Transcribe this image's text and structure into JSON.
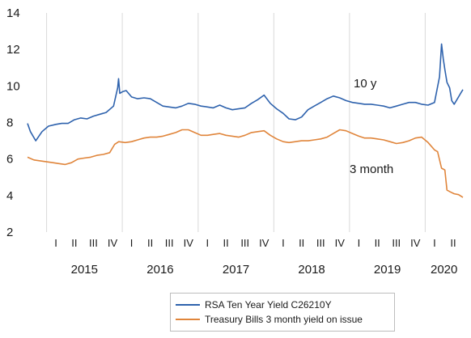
{
  "chart_data": {
    "type": "line",
    "title": "",
    "xlabel": "",
    "ylabel": "",
    "ylim": [
      2,
      14
    ],
    "yticks": [
      "2",
      "4",
      "6",
      "8",
      "10",
      "12",
      "14"
    ],
    "x_range": [
      "2014-10-01",
      "2020-07-01"
    ],
    "grid": "vertical gridlines at year boundaries",
    "quarter_labels": [
      "I",
      "II",
      "III",
      "IV"
    ],
    "year_labels": [
      "2015",
      "2016",
      "2017",
      "2018",
      "2019",
      "2020"
    ],
    "legend": "bottom-center",
    "annotations": [
      "10 y",
      "3 month"
    ],
    "series": [
      {
        "name": "RSA Ten Year Yield C26210Y",
        "color": "#2e62ad",
        "points": [
          [
            "2014-10-01",
            7.95
          ],
          [
            "2014-10-15",
            7.5
          ],
          [
            "2014-11-10",
            7.0
          ],
          [
            "2014-12-10",
            7.5
          ],
          [
            "2015-01-10",
            7.8
          ],
          [
            "2015-02-15",
            7.9
          ],
          [
            "2015-03-15",
            7.95
          ],
          [
            "2015-04-15",
            7.95
          ],
          [
            "2015-05-15",
            8.15
          ],
          [
            "2015-06-15",
            8.25
          ],
          [
            "2015-07-15",
            8.2
          ],
          [
            "2015-08-15",
            8.35
          ],
          [
            "2015-09-15",
            8.45
          ],
          [
            "2015-10-15",
            8.55
          ],
          [
            "2015-11-20",
            8.9
          ],
          [
            "2015-12-10",
            9.9
          ],
          [
            "2015-12-14",
            10.4
          ],
          [
            "2015-12-20",
            9.6
          ],
          [
            "2016-01-05",
            9.7
          ],
          [
            "2016-01-20",
            9.75
          ],
          [
            "2016-02-15",
            9.4
          ],
          [
            "2016-03-15",
            9.3
          ],
          [
            "2016-04-15",
            9.35
          ],
          [
            "2016-05-15",
            9.3
          ],
          [
            "2016-06-15",
            9.1
          ],
          [
            "2016-07-15",
            8.9
          ],
          [
            "2016-08-15",
            8.85
          ],
          [
            "2016-09-15",
            8.8
          ],
          [
            "2016-10-15",
            8.9
          ],
          [
            "2016-11-15",
            9.05
          ],
          [
            "2016-12-15",
            9.0
          ],
          [
            "2017-01-15",
            8.9
          ],
          [
            "2017-02-15",
            8.85
          ],
          [
            "2017-03-15",
            8.8
          ],
          [
            "2017-04-15",
            8.95
          ],
          [
            "2017-05-15",
            8.8
          ],
          [
            "2017-06-15",
            8.7
          ],
          [
            "2017-07-15",
            8.75
          ],
          [
            "2017-08-15",
            8.8
          ],
          [
            "2017-09-15",
            9.05
          ],
          [
            "2017-10-15",
            9.25
          ],
          [
            "2017-11-15",
            9.5
          ],
          [
            "2017-12-15",
            9.05
          ],
          [
            "2018-01-15",
            8.75
          ],
          [
            "2018-02-15",
            8.5
          ],
          [
            "2018-03-15",
            8.2
          ],
          [
            "2018-04-15",
            8.15
          ],
          [
            "2018-05-15",
            8.3
          ],
          [
            "2018-06-15",
            8.7
          ],
          [
            "2018-07-15",
            8.9
          ],
          [
            "2018-08-15",
            9.1
          ],
          [
            "2018-09-15",
            9.3
          ],
          [
            "2018-10-15",
            9.45
          ],
          [
            "2018-11-15",
            9.35
          ],
          [
            "2018-12-15",
            9.2
          ],
          [
            "2019-01-15",
            9.1
          ],
          [
            "2019-02-15",
            9.05
          ],
          [
            "2019-03-15",
            9.0
          ],
          [
            "2019-04-15",
            9.0
          ],
          [
            "2019-05-15",
            8.95
          ],
          [
            "2019-06-15",
            8.9
          ],
          [
            "2019-07-15",
            8.8
          ],
          [
            "2019-08-15",
            8.9
          ],
          [
            "2019-09-15",
            9.0
          ],
          [
            "2019-10-15",
            9.1
          ],
          [
            "2019-11-15",
            9.1
          ],
          [
            "2019-12-15",
            9.0
          ],
          [
            "2020-01-15",
            8.95
          ],
          [
            "2020-02-15",
            9.1
          ],
          [
            "2020-03-10",
            10.5
          ],
          [
            "2020-03-20",
            12.3
          ],
          [
            "2020-03-28",
            11.5
          ],
          [
            "2020-04-05",
            10.9
          ],
          [
            "2020-04-15",
            10.2
          ],
          [
            "2020-04-28",
            9.9
          ],
          [
            "2020-05-08",
            9.2
          ],
          [
            "2020-05-20",
            9.0
          ],
          [
            "2020-06-05",
            9.3
          ],
          [
            "2020-06-20",
            9.6
          ],
          [
            "2020-07-01",
            9.8
          ]
        ]
      },
      {
        "name": "Treasury Bills 3 month yield on issue",
        "color": "#e0853b",
        "points": [
          [
            "2014-10-01",
            6.1
          ],
          [
            "2014-11-01",
            5.95
          ],
          [
            "2014-12-01",
            5.9
          ],
          [
            "2015-01-01",
            5.85
          ],
          [
            "2015-02-01",
            5.8
          ],
          [
            "2015-03-01",
            5.75
          ],
          [
            "2015-04-01",
            5.7
          ],
          [
            "2015-05-01",
            5.8
          ],
          [
            "2015-06-01",
            6.0
          ],
          [
            "2015-07-01",
            6.05
          ],
          [
            "2015-08-01",
            6.1
          ],
          [
            "2015-09-01",
            6.2
          ],
          [
            "2015-10-01",
            6.25
          ],
          [
            "2015-11-01",
            6.35
          ],
          [
            "2015-11-25",
            6.8
          ],
          [
            "2015-12-15",
            6.95
          ],
          [
            "2016-01-15",
            6.9
          ],
          [
            "2016-02-15",
            6.95
          ],
          [
            "2016-03-15",
            7.05
          ],
          [
            "2016-04-15",
            7.15
          ],
          [
            "2016-05-15",
            7.2
          ],
          [
            "2016-06-15",
            7.2
          ],
          [
            "2016-07-15",
            7.25
          ],
          [
            "2016-08-15",
            7.35
          ],
          [
            "2016-09-15",
            7.45
          ],
          [
            "2016-10-15",
            7.6
          ],
          [
            "2016-11-15",
            7.6
          ],
          [
            "2016-12-15",
            7.45
          ],
          [
            "2017-01-15",
            7.3
          ],
          [
            "2017-02-15",
            7.3
          ],
          [
            "2017-03-15",
            7.35
          ],
          [
            "2017-04-15",
            7.4
          ],
          [
            "2017-05-15",
            7.3
          ],
          [
            "2017-06-15",
            7.25
          ],
          [
            "2017-07-15",
            7.2
          ],
          [
            "2017-08-15",
            7.3
          ],
          [
            "2017-09-15",
            7.45
          ],
          [
            "2017-10-15",
            7.5
          ],
          [
            "2017-11-15",
            7.55
          ],
          [
            "2017-12-15",
            7.3
          ],
          [
            "2018-01-15",
            7.1
          ],
          [
            "2018-02-15",
            6.95
          ],
          [
            "2018-03-15",
            6.9
          ],
          [
            "2018-04-15",
            6.95
          ],
          [
            "2018-05-15",
            7.0
          ],
          [
            "2018-06-15",
            7.0
          ],
          [
            "2018-07-15",
            7.05
          ],
          [
            "2018-08-15",
            7.1
          ],
          [
            "2018-09-15",
            7.2
          ],
          [
            "2018-10-15",
            7.4
          ],
          [
            "2018-11-15",
            7.6
          ],
          [
            "2018-12-15",
            7.55
          ],
          [
            "2019-01-15",
            7.4
          ],
          [
            "2019-02-15",
            7.25
          ],
          [
            "2019-03-15",
            7.15
          ],
          [
            "2019-04-15",
            7.15
          ],
          [
            "2019-05-15",
            7.1
          ],
          [
            "2019-06-15",
            7.05
          ],
          [
            "2019-07-15",
            6.95
          ],
          [
            "2019-08-15",
            6.85
          ],
          [
            "2019-09-15",
            6.9
          ],
          [
            "2019-10-15",
            7.0
          ],
          [
            "2019-11-15",
            7.15
          ],
          [
            "2019-12-15",
            7.2
          ],
          [
            "2020-01-15",
            6.9
          ],
          [
            "2020-02-15",
            6.5
          ],
          [
            "2020-03-01",
            6.4
          ],
          [
            "2020-03-20",
            5.5
          ],
          [
            "2020-04-05",
            5.4
          ],
          [
            "2020-04-15",
            4.3
          ],
          [
            "2020-05-01",
            4.2
          ],
          [
            "2020-05-20",
            4.1
          ],
          [
            "2020-06-10",
            4.05
          ],
          [
            "2020-07-01",
            3.9
          ]
        ]
      }
    ]
  }
}
